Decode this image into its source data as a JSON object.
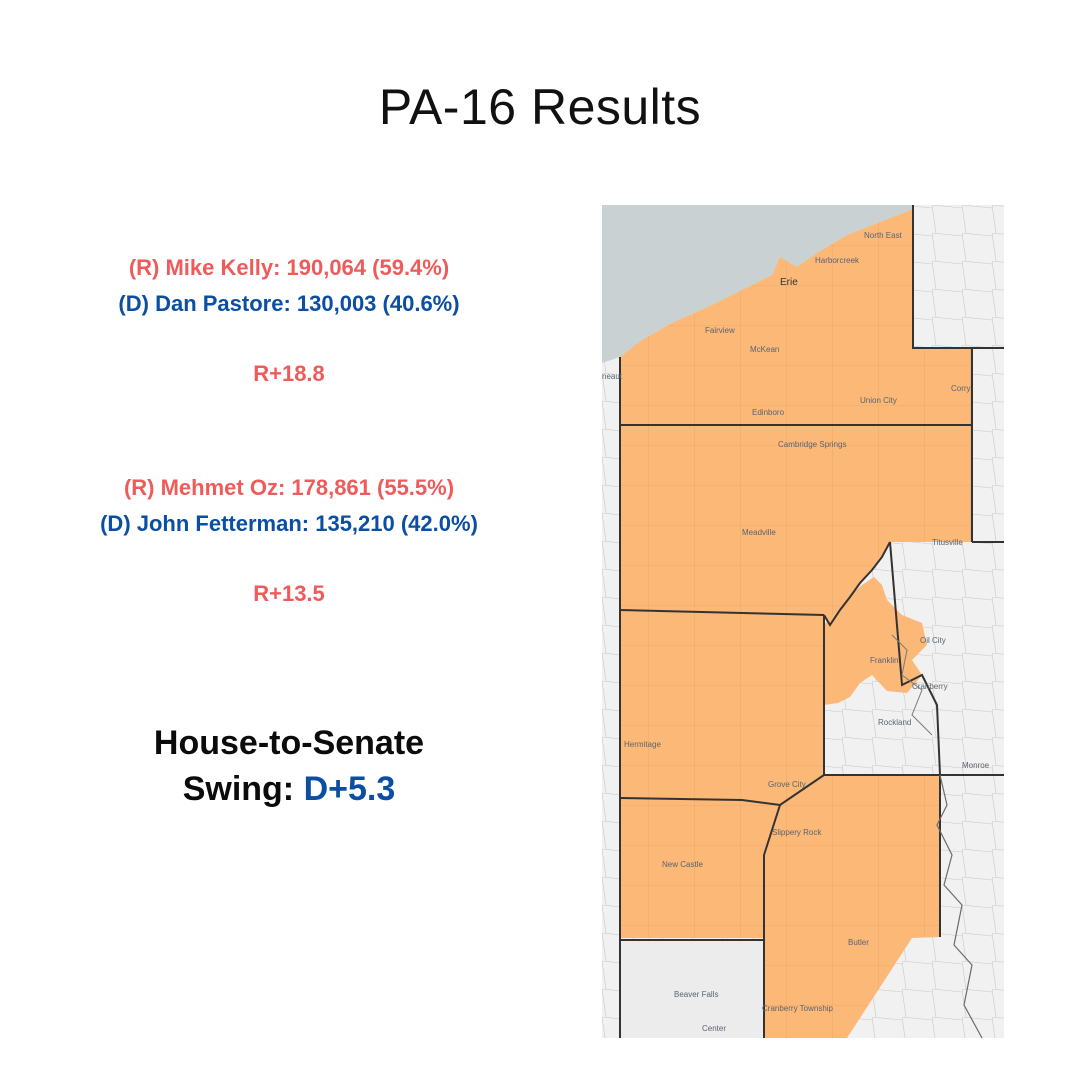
{
  "title": "PA-16 Results",
  "house": {
    "rep_line": "(R) Mike Kelly: 190,064 (59.4%)",
    "dem_line": "(D) Dan Pastore: 130,003 (40.6%)",
    "margin": "R+18.8"
  },
  "senate": {
    "rep_line": "(R) Mehmet Oz: 178,861 (55.5%)",
    "dem_line": "(D) John Fetterman: 135,210 (42.0%)",
    "margin": "R+13.5"
  },
  "swing": {
    "line1": "House-to-Senate",
    "label": "Swing:",
    "value": "D+5.3"
  },
  "colors": {
    "republican": "#ef5b5b",
    "democrat": "#0b4ea2",
    "district_fill": "#fbb877",
    "lake": "#c9d1d3",
    "land": "#f1f1f1"
  },
  "map": {
    "places": {
      "north_east": "North East",
      "harborcreek": "Harborcreek",
      "erie": "Erie",
      "fairview": "Fairview",
      "mckean": "McKean",
      "conneaut": "neaut",
      "corry": "Corry",
      "union_city": "Union City",
      "edinboro": "Edinboro",
      "cambridge_springs": "Cambridge Springs",
      "meadville": "Meadville",
      "titusville": "Titusville",
      "oil_city": "Oil City",
      "franklin": "Franklin",
      "cranberry": "Cranberry",
      "rockland": "Rockland",
      "monroe": "Monroe",
      "hermitage": "Hermitage",
      "grove_city": "Grove City",
      "slippery_rock": "Slippery Rock",
      "new_castle": "New Castle",
      "butler": "Butler",
      "beaver_falls": "Beaver Falls",
      "cranberry_township": "Cranberry Township",
      "center": "Center"
    }
  }
}
